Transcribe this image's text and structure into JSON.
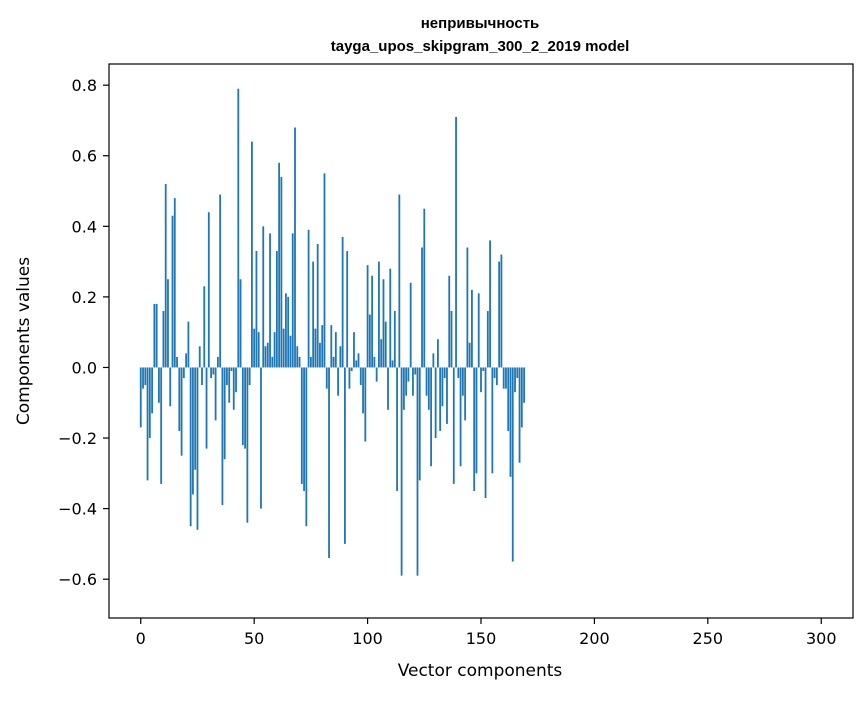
{
  "chart_data": {
    "type": "bar",
    "title_line1": "непривычность",
    "title_line2": "tayga_upos_skipgram_300_2_2019 model",
    "xlabel": "Vector components",
    "ylabel": "Components values",
    "xlim": [
      -14,
      314
    ],
    "ylim": [
      -0.71,
      0.86
    ],
    "xticks": [
      0,
      50,
      100,
      150,
      200,
      250,
      300
    ],
    "xtick_labels": [
      "0",
      "50",
      "100",
      "150",
      "200",
      "250",
      "300"
    ],
    "yticks": [
      -0.6,
      -0.4,
      -0.2,
      0.0,
      0.2,
      0.4,
      0.6,
      0.8
    ],
    "ytick_labels": [
      "−0.6",
      "−0.4",
      "−0.2",
      "0.0",
      "0.2",
      "0.4",
      "0.6",
      "0.8"
    ],
    "bar_color": "#1f77b4",
    "grid": false,
    "legend": false,
    "values": [
      -0.17,
      -0.06,
      -0.05,
      -0.32,
      -0.2,
      -0.13,
      0.18,
      0.18,
      -0.1,
      -0.33,
      0.16,
      0.52,
      0.25,
      -0.11,
      0.43,
      0.48,
      0.03,
      -0.18,
      -0.25,
      -0.03,
      0.04,
      0.13,
      -0.45,
      -0.36,
      -0.29,
      -0.46,
      0.06,
      -0.05,
      0.23,
      -0.23,
      0.44,
      -0.03,
      -0.02,
      -0.15,
      0.03,
      0.49,
      -0.39,
      -0.26,
      -0.05,
      -0.1,
      -0.01,
      -0.12,
      -0.07,
      0.79,
      0.25,
      -0.22,
      -0.23,
      -0.44,
      -0.05,
      0.64,
      0.11,
      0.33,
      0.1,
      -0.4,
      0.4,
      0.06,
      0.07,
      0.38,
      0.03,
      0.1,
      0.33,
      0.58,
      0.54,
      0.11,
      0.21,
      0.2,
      0.09,
      0.38,
      0.68,
      0.06,
      0.03,
      -0.33,
      -0.35,
      -0.45,
      0.39,
      0.03,
      0.3,
      0.11,
      0.35,
      0.07,
      0.12,
      0.55,
      -0.06,
      -0.54,
      0.12,
      0.03,
      0.1,
      -0.08,
      0.06,
      0.37,
      -0.5,
      0.33,
      -0.06,
      -0.01,
      0.1,
      0.02,
      0.04,
      -0.05,
      -0.13,
      -0.21,
      0.29,
      0.15,
      0.26,
      0.03,
      -0.04,
      0.3,
      0.08,
      0.25,
      0.13,
      -0.12,
      0.28,
      0.02,
      0.16,
      -0.35,
      0.49,
      -0.59,
      -0.12,
      -0.08,
      -0.04,
      0.24,
      -0.08,
      -0.02,
      -0.59,
      -0.32,
      0.34,
      0.45,
      -0.08,
      -0.12,
      -0.28,
      0.04,
      -0.2,
      0.08,
      -0.18,
      -0.11,
      -0.03,
      -0.16,
      0.26,
      0.16,
      -0.33,
      0.71,
      -0.03,
      -0.28,
      -0.08,
      -0.15,
      0.34,
      0.07,
      0.22,
      -0.35,
      -0.3,
      0.21,
      -0.07,
      -0.01,
      -0.37,
      0.16,
      0.36,
      -0.3,
      -0.03,
      -0.05,
      0.3,
      0.32,
      -0.06,
      -0.06,
      -0.18,
      -0.31,
      -0.55,
      -0.07,
      -0.03,
      -0.27,
      -0.17,
      -0.1
    ]
  }
}
